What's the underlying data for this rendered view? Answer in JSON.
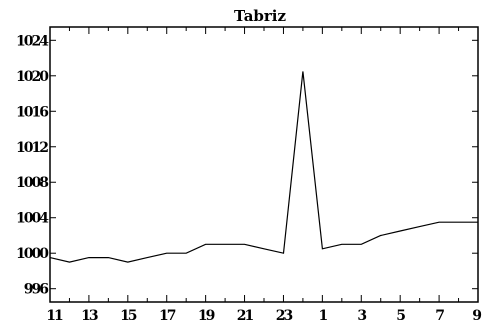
{
  "chart_data": {
    "type": "line",
    "title": "Tabriz",
    "xlabel": "",
    "ylabel": "",
    "x_tick_labels": [
      "11",
      "13",
      "15",
      "17",
      "19",
      "21",
      "23",
      "1",
      "3",
      "5",
      "7",
      "9"
    ],
    "y_tick_labels": [
      "996",
      "1000",
      "1004",
      "1008",
      "1012",
      "1016",
      "1020",
      "1024"
    ],
    "y_ticks": [
      996,
      1000,
      1004,
      1008,
      1012,
      1016,
      1020,
      1024
    ],
    "ylim": [
      994.5,
      1025.5
    ],
    "grid": false,
    "series": [
      {
        "values": [
          999.5,
          999,
          999.5,
          999.5,
          999,
          999.5,
          1000,
          1000,
          1001,
          1001,
          1001,
          1000.5,
          1000,
          1020.5,
          1000.5,
          1001,
          1001,
          1002,
          1002.5,
          1003,
          1003.5,
          1003.5,
          1003.5
        ]
      }
    ]
  }
}
